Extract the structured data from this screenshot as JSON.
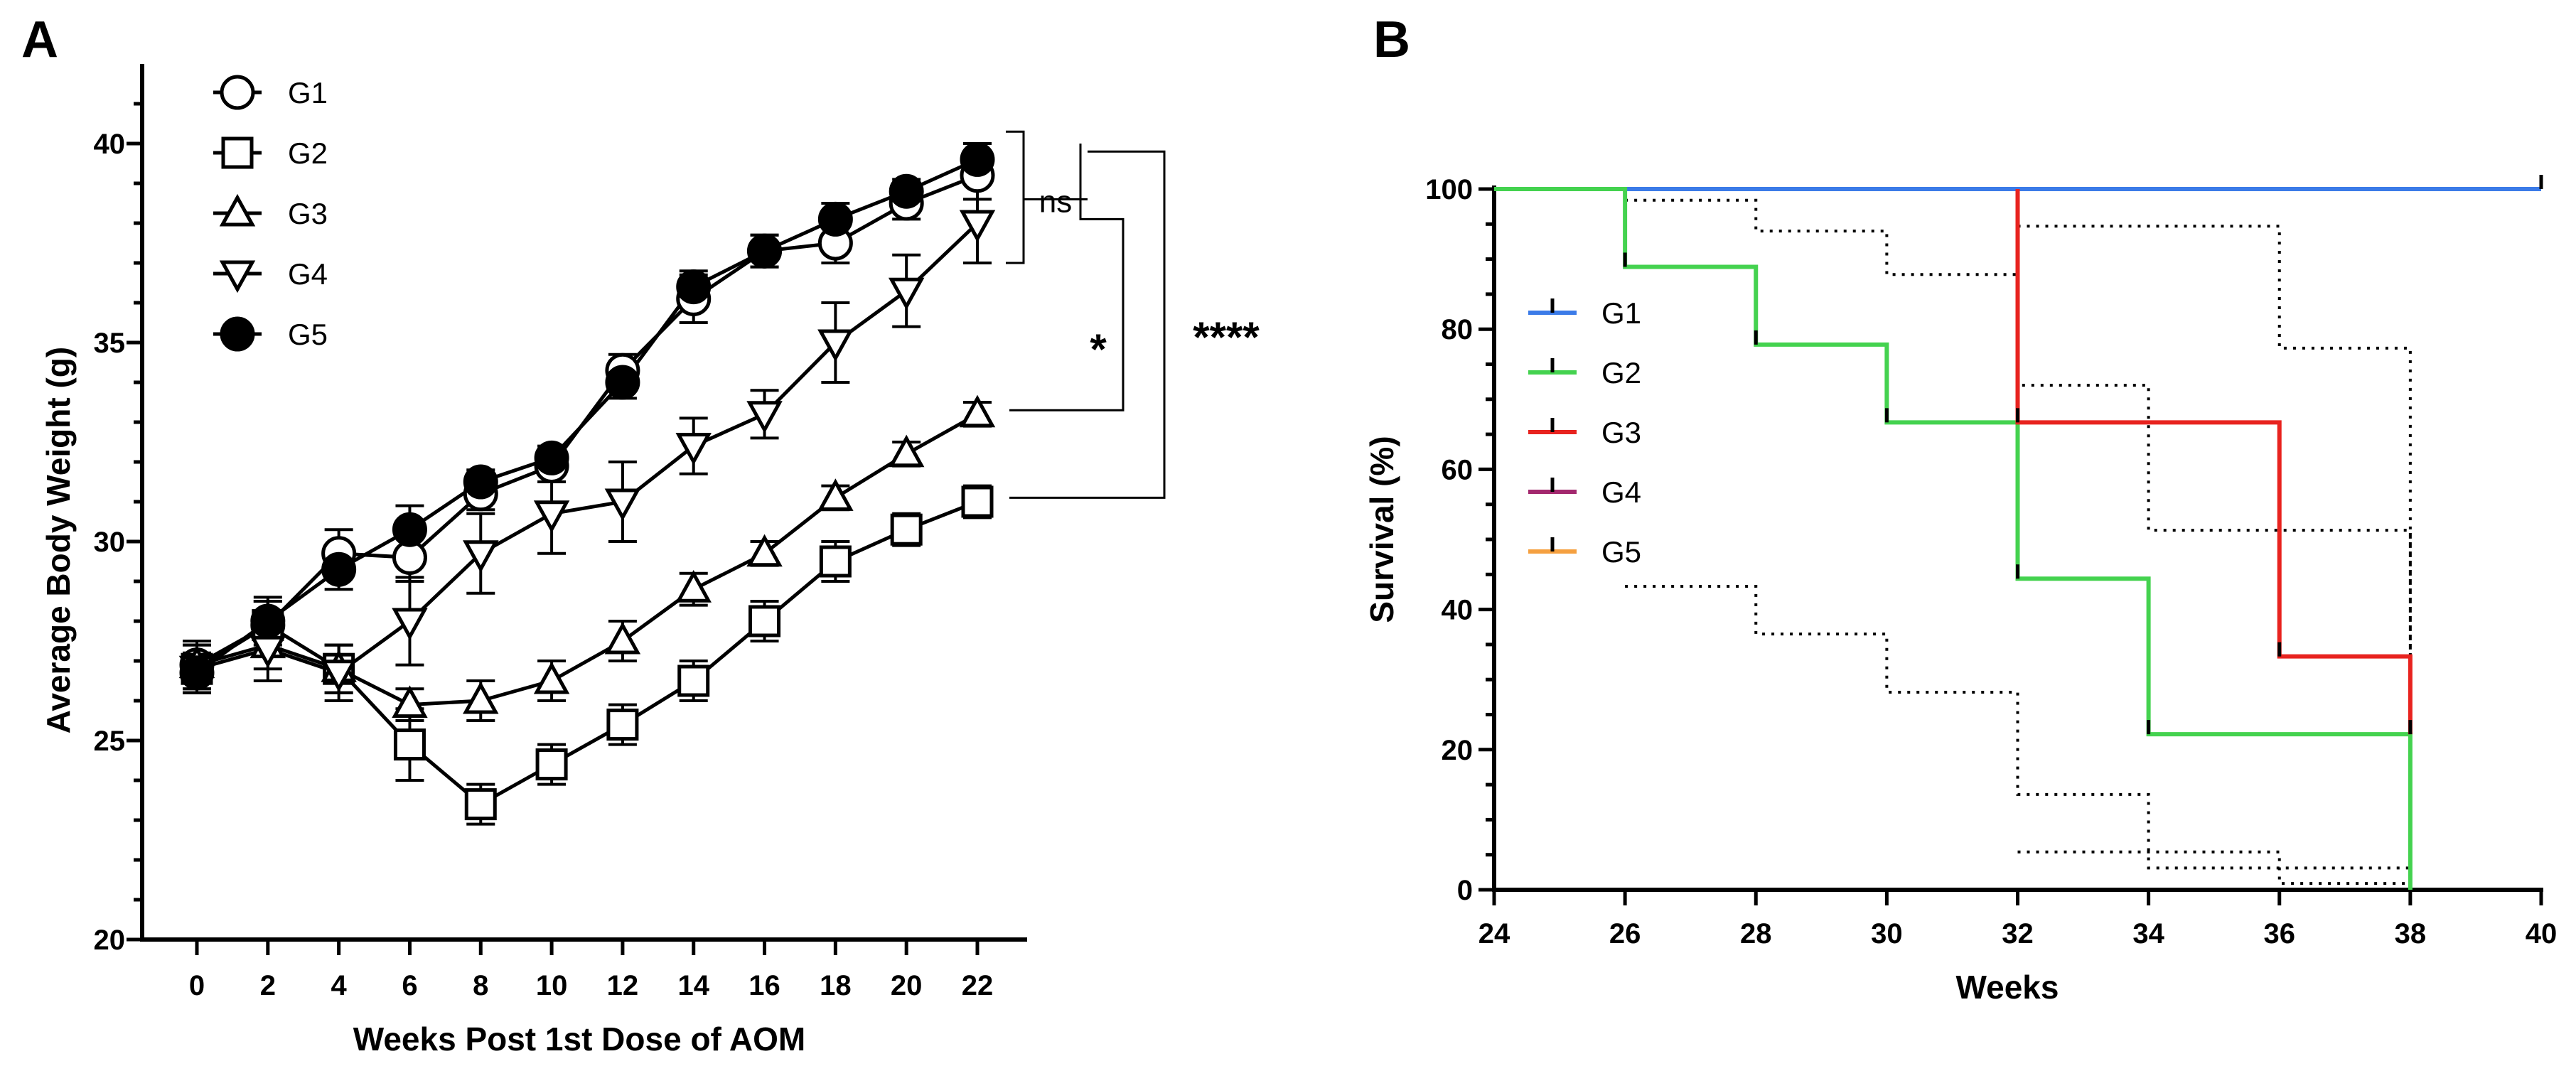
{
  "chart_data": [
    {
      "panel": "A",
      "type": "line",
      "xlabel": "Weeks Post 1st Dose of AOM",
      "ylabel": "Average Body Weight (g)",
      "ylim": [
        20,
        42
      ],
      "xlim": [
        -2,
        24
      ],
      "x": [
        0,
        2,
        4,
        6,
        8,
        10,
        12,
        14,
        16,
        18,
        20,
        22
      ],
      "xticks": [
        "0",
        "2",
        "4",
        "6",
        "8",
        "10",
        "12",
        "14",
        "16",
        "18",
        "20",
        "22"
      ],
      "yticks": [
        "20",
        "25",
        "30",
        "35",
        "40"
      ],
      "series": [
        {
          "name": "G1",
          "marker": "circle-open",
          "values": [
            26.9,
            27.9,
            29.7,
            29.6,
            31.2,
            31.9,
            34.3,
            36.1,
            37.3,
            37.5,
            38.5,
            39.2
          ],
          "errors": [
            0.6,
            0.6,
            0.6,
            0.6,
            0.4,
            0.4,
            0.4,
            0.6,
            0.4,
            0.5,
            0.4,
            0.6
          ]
        },
        {
          "name": "G2",
          "marker": "square-open",
          "values": [
            26.8,
            27.9,
            26.8,
            24.9,
            23.4,
            24.4,
            25.4,
            26.5,
            28.0,
            29.5,
            30.3,
            31.0
          ],
          "errors": [
            0.6,
            0.6,
            0.6,
            0.9,
            0.5,
            0.5,
            0.5,
            0.5,
            0.5,
            0.5,
            0.4,
            0.4
          ]
        },
        {
          "name": "G3",
          "marker": "triangle-up-open",
          "values": [
            26.9,
            27.4,
            26.8,
            25.9,
            26.0,
            26.5,
            27.5,
            28.8,
            29.7,
            31.1,
            32.2,
            33.2
          ],
          "errors": [
            0.6,
            0.6,
            0.6,
            0.4,
            0.5,
            0.5,
            0.5,
            0.4,
            0.3,
            0.3,
            0.3,
            0.3
          ]
        },
        {
          "name": "G4",
          "marker": "triangle-down-open",
          "values": [
            26.8,
            27.3,
            26.7,
            28.0,
            29.7,
            30.7,
            31.0,
            32.4,
            33.2,
            35.0,
            36.3,
            38.0
          ],
          "errors": [
            0.6,
            0.8,
            0.7,
            1.1,
            1.0,
            1.0,
            1.0,
            0.7,
            0.6,
            1.0,
            0.9,
            1.0
          ]
        },
        {
          "name": "G5",
          "marker": "circle-filled",
          "values": [
            26.7,
            28.0,
            29.3,
            30.3,
            31.5,
            32.1,
            34.0,
            36.4,
            37.3,
            38.1,
            38.8,
            39.6
          ],
          "errors": [
            0.5,
            0.6,
            0.5,
            0.6,
            0.3,
            0.3,
            0.4,
            0.4,
            0.4,
            0.4,
            0.3,
            0.4
          ]
        }
      ],
      "significance": [
        {
          "label": "ns",
          "groups": [
            "G1",
            "G4"
          ]
        },
        {
          "label": "*",
          "groups": [
            "G4",
            "G3"
          ]
        },
        {
          "label": "****",
          "groups": [
            "G5",
            "G2"
          ]
        }
      ],
      "legend": "top-left"
    },
    {
      "panel": "B",
      "type": "line",
      "subtype": "survival-step",
      "xlabel": "Weeks",
      "ylabel": "Survival (%)",
      "xlim": [
        24,
        40
      ],
      "ylim": [
        0,
        100
      ],
      "xticks": [
        "24",
        "26",
        "28",
        "30",
        "32",
        "34",
        "36",
        "38",
        "40"
      ],
      "yticks": [
        "0",
        "20",
        "40",
        "60",
        "80",
        "100"
      ],
      "series": [
        {
          "name": "G1",
          "color": "#3b7be8",
          "steps": [
            [
              24,
              100
            ],
            [
              40,
              100
            ]
          ],
          "censors": [
            [
              40,
              100
            ]
          ]
        },
        {
          "name": "G2",
          "color": "#44d24f",
          "steps": [
            [
              24,
              100
            ],
            [
              26,
              100
            ],
            [
              26,
              88.9
            ],
            [
              28,
              88.9
            ],
            [
              28,
              77.8
            ],
            [
              30,
              77.8
            ],
            [
              30,
              66.7
            ],
            [
              32,
              66.7
            ],
            [
              32,
              44.4
            ],
            [
              34,
              44.4
            ],
            [
              34,
              22.2
            ],
            [
              38,
              22.2
            ],
            [
              38,
              0
            ]
          ],
          "censors": [
            [
              26,
              88.9
            ],
            [
              28,
              77.8
            ],
            [
              30,
              66.7
            ],
            [
              32,
              44.4
            ],
            [
              34,
              22.2
            ]
          ]
        },
        {
          "name": "G3",
          "color": "#e8231f",
          "steps": [
            [
              32,
              100
            ],
            [
              32,
              66.7
            ],
            [
              36,
              66.7
            ],
            [
              36,
              33.3
            ],
            [
              38,
              33.3
            ],
            [
              38,
              22.2
            ]
          ],
          "censors": [
            [
              32,
              66.7
            ],
            [
              36,
              33.3
            ],
            [
              38,
              22.2
            ]
          ]
        },
        {
          "name": "G4",
          "color": "#a3286e",
          "steps": [],
          "censors": []
        },
        {
          "name": "G5",
          "color": "#f5a040",
          "steps": [],
          "censors": []
        }
      ],
      "confidence_bands": [
        {
          "group": "G2",
          "bound": "upper",
          "steps": [
            [
              26,
              98.4
            ],
            [
              28,
              98.4
            ],
            [
              28,
              94.0
            ],
            [
              30,
              94.0
            ],
            [
              30,
              87.8
            ],
            [
              32,
              87.8
            ],
            [
              32,
              72.0
            ],
            [
              34,
              72.0
            ],
            [
              34,
              51.3
            ],
            [
              38,
              51.3
            ],
            [
              38,
              0.8
            ]
          ]
        },
        {
          "group": "G2",
          "bound": "lower",
          "steps": [
            [
              26,
              43.3
            ],
            [
              28,
              43.3
            ],
            [
              28,
              36.5
            ],
            [
              30,
              36.5
            ],
            [
              30,
              28.2
            ],
            [
              32,
              28.2
            ],
            [
              32,
              13.6
            ],
            [
              34,
              13.6
            ],
            [
              34,
              3.1
            ],
            [
              38,
              3.1
            ]
          ]
        },
        {
          "group": "G3",
          "bound": "upper",
          "steps": [
            [
              32,
              94.7
            ],
            [
              36,
              94.7
            ],
            [
              36,
              77.3
            ],
            [
              38,
              77.3
            ],
            [
              38,
              0
            ]
          ]
        },
        {
          "group": "G3",
          "bound": "lower",
          "steps": [
            [
              32,
              5.4
            ],
            [
              36,
              5.4
            ],
            [
              36,
              0.9
            ],
            [
              38,
              0.9
            ]
          ]
        }
      ],
      "legend": "left"
    }
  ]
}
